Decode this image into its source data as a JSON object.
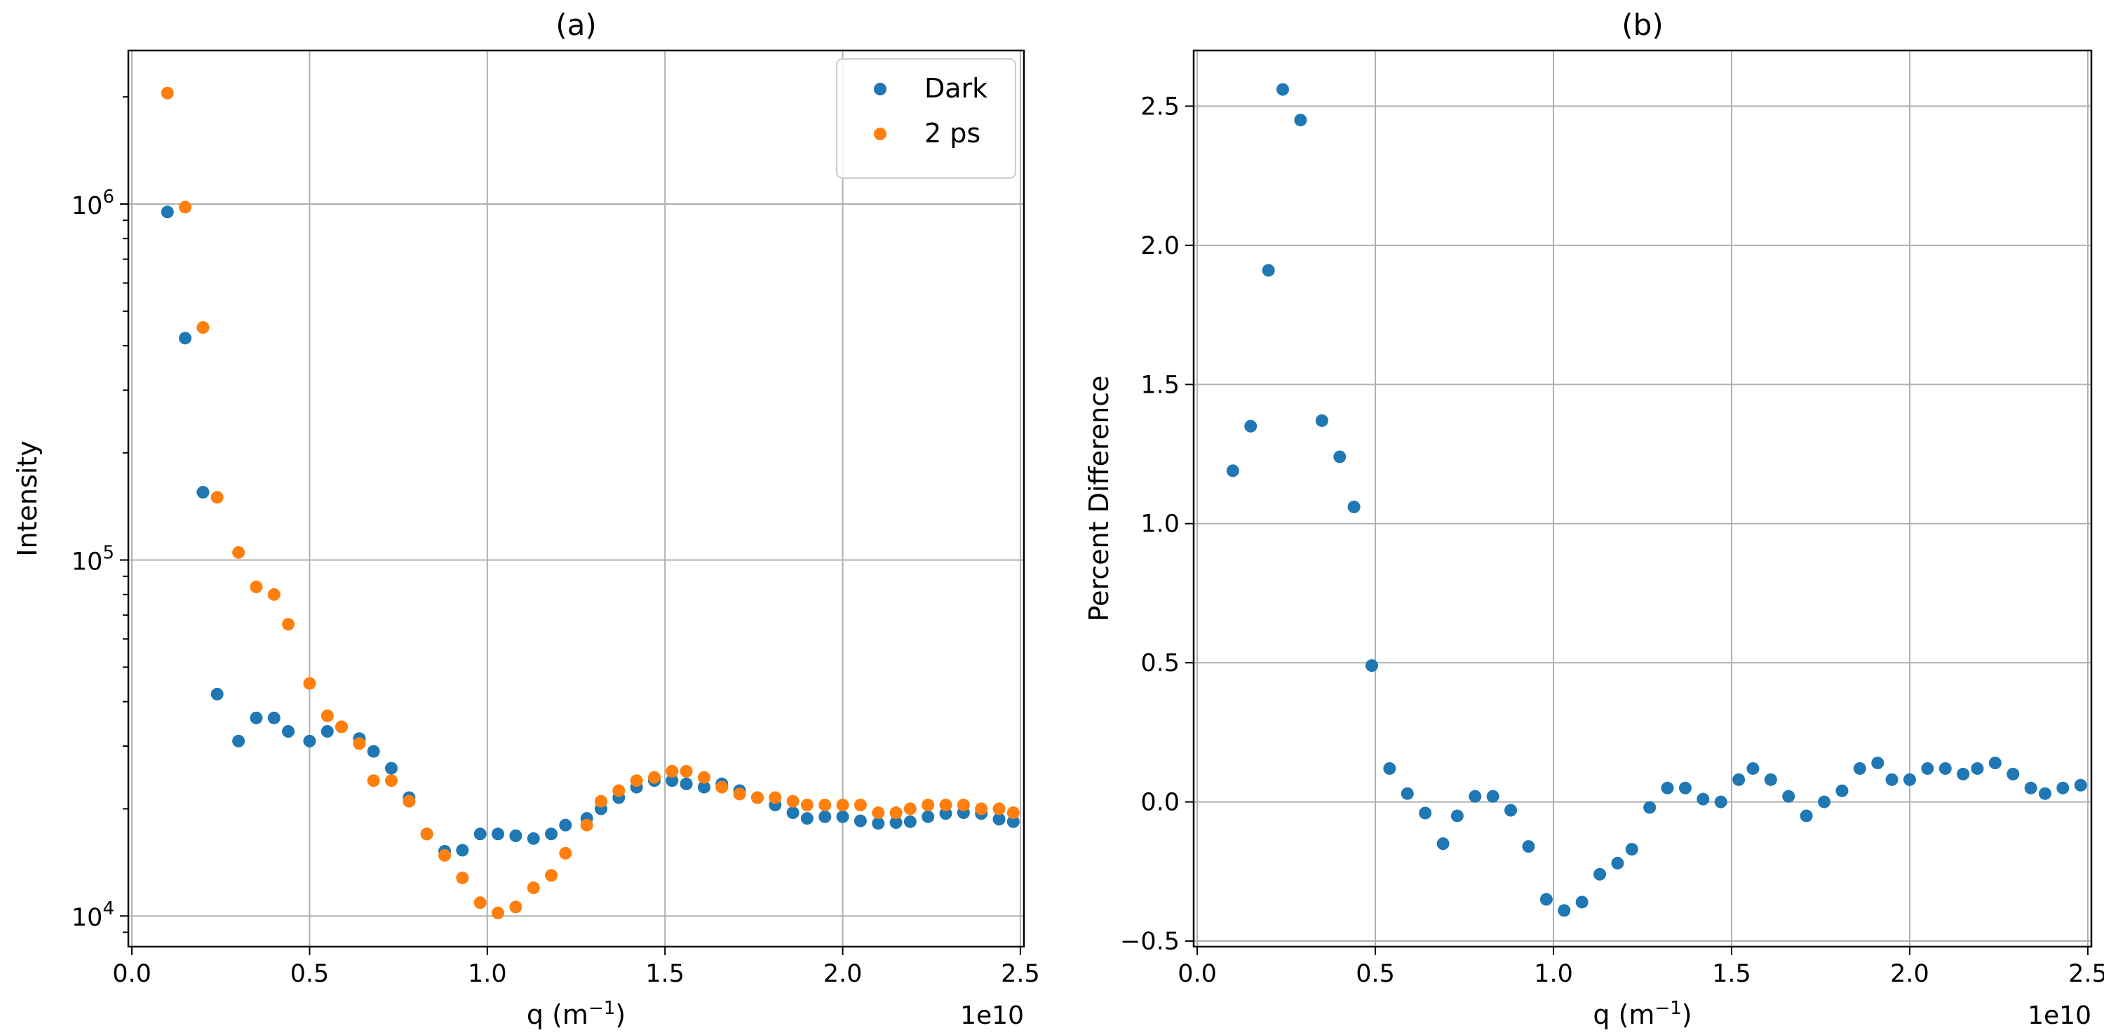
{
  "chart_data": [
    {
      "type": "scatter",
      "title": "(a)",
      "xlabel": "q (m",
      "xlabel_sup": "−1",
      "xlabel_close": ")",
      "ylabel": "Intensity",
      "yscale": "log",
      "xlim": [
        -0.01,
        2.51
      ],
      "ylim": [
        8200,
        2700000
      ],
      "x_ticks": [
        0.0,
        0.5,
        1.0,
        1.5,
        2.0,
        2.5
      ],
      "x_tick_labels": [
        "0.0",
        "0.5",
        "1.0",
        "1.5",
        "2.0",
        "2.5"
      ],
      "x_offset_label": "1e10",
      "y_ticks": [
        10000,
        100000,
        1000000
      ],
      "y_tick_bases": [
        "10",
        "10",
        "10"
      ],
      "y_tick_exps": [
        "4",
        "5",
        "6"
      ],
      "grid": true,
      "legend_position": "upper right",
      "series": [
        {
          "name": "Dark",
          "color": "#1f77b4",
          "x": [
            0.1,
            0.15,
            0.2,
            0.24,
            0.3,
            0.35,
            0.4,
            0.44,
            0.5,
            0.55,
            0.59,
            0.64,
            0.68,
            0.73,
            0.78,
            0.83,
            0.88,
            0.93,
            0.98,
            1.03,
            1.08,
            1.13,
            1.18,
            1.22,
            1.28,
            1.32,
            1.37,
            1.42,
            1.47,
            1.52,
            1.56,
            1.61,
            1.66,
            1.71,
            1.76,
            1.81,
            1.86,
            1.9,
            1.95,
            2.0,
            2.05,
            2.1,
            2.15,
            2.19,
            2.24,
            2.29,
            2.34,
            2.39,
            2.44,
            2.48
          ],
          "y": [
            950000,
            420000,
            155000,
            42000,
            31000,
            36000,
            36000,
            33000,
            31000,
            33000,
            34000,
            31500,
            29000,
            26000,
            21500,
            17000,
            15200,
            15300,
            17000,
            17000,
            16800,
            16500,
            17000,
            18000,
            18800,
            20000,
            21500,
            23000,
            24000,
            24000,
            23500,
            23000,
            23500,
            22500,
            21500,
            20500,
            19500,
            18800,
            19000,
            19000,
            18500,
            18200,
            18300,
            18400,
            19000,
            19400,
            19500,
            19400,
            18700,
            18400
          ]
        },
        {
          "name": "2 ps",
          "color": "#ff7f0e",
          "x": [
            0.1,
            0.15,
            0.2,
            0.24,
            0.3,
            0.35,
            0.4,
            0.44,
            0.5,
            0.55,
            0.59,
            0.64,
            0.68,
            0.73,
            0.78,
            0.83,
            0.88,
            0.93,
            0.98,
            1.03,
            1.08,
            1.13,
            1.18,
            1.22,
            1.28,
            1.32,
            1.37,
            1.42,
            1.47,
            1.52,
            1.56,
            1.61,
            1.66,
            1.71,
            1.76,
            1.81,
            1.86,
            1.9,
            1.95,
            2.0,
            2.05,
            2.1,
            2.15,
            2.19,
            2.24,
            2.29,
            2.34,
            2.39,
            2.44,
            2.48
          ],
          "y": [
            2050000,
            980000,
            450000,
            150000,
            105000,
            84000,
            80000,
            66000,
            45000,
            36500,
            34000,
            30500,
            24000,
            24000,
            21000,
            17000,
            14800,
            12800,
            10900,
            10200,
            10600,
            12000,
            13000,
            15000,
            18000,
            21000,
            22500,
            24000,
            24500,
            25500,
            25500,
            24500,
            23000,
            22000,
            21500,
            21500,
            21000,
            20500,
            20500,
            20500,
            20500,
            19500,
            19500,
            20000,
            20500,
            20500,
            20500,
            20000,
            20000,
            19500
          ]
        }
      ]
    },
    {
      "type": "scatter",
      "title": "(b)",
      "xlabel": "q (m",
      "xlabel_sup": "−1",
      "xlabel_close": ")",
      "ylabel": "Percent Difference",
      "yscale": "linear",
      "xlim": [
        -0.01,
        2.51
      ],
      "ylim": [
        -0.52,
        2.7
      ],
      "x_ticks": [
        0.0,
        0.5,
        1.0,
        1.5,
        2.0,
        2.5
      ],
      "x_tick_labels": [
        "0.0",
        "0.5",
        "1.0",
        "1.5",
        "2.0",
        "2.5"
      ],
      "x_offset_label": "1e10",
      "y_ticks": [
        -0.5,
        0.0,
        0.5,
        1.0,
        1.5,
        2.0,
        2.5
      ],
      "y_tick_labels": [
        "−0.5",
        "0.0",
        "0.5",
        "1.0",
        "1.5",
        "2.0",
        "2.5"
      ],
      "grid": true,
      "series": [
        {
          "name": "Percent Difference",
          "color": "#1f77b4",
          "x": [
            0.1,
            0.15,
            0.2,
            0.24,
            0.29,
            0.35,
            0.4,
            0.44,
            0.49,
            0.54,
            0.59,
            0.64,
            0.69,
            0.73,
            0.78,
            0.83,
            0.88,
            0.93,
            0.98,
            1.03,
            1.08,
            1.13,
            1.18,
            1.22,
            1.27,
            1.32,
            1.37,
            1.42,
            1.47,
            1.52,
            1.56,
            1.61,
            1.66,
            1.71,
            1.76,
            1.81,
            1.86,
            1.91,
            1.95,
            2.0,
            2.05,
            2.1,
            2.15,
            2.19,
            2.24,
            2.29,
            2.34,
            2.38,
            2.43,
            2.48
          ],
          "y": [
            1.19,
            1.35,
            1.91,
            2.56,
            2.45,
            1.37,
            1.24,
            1.06,
            0.49,
            0.12,
            0.03,
            -0.04,
            -0.15,
            -0.05,
            0.02,
            0.02,
            -0.03,
            -0.16,
            -0.35,
            -0.39,
            -0.36,
            -0.26,
            -0.22,
            -0.17,
            -0.02,
            0.05,
            0.05,
            0.01,
            0.0,
            0.08,
            0.12,
            0.08,
            0.02,
            -0.05,
            0.0,
            0.04,
            0.12,
            0.14,
            0.08,
            0.08,
            0.12,
            0.12,
            0.1,
            0.12,
            0.14,
            0.1,
            0.05,
            0.03,
            0.05,
            0.06
          ]
        }
      ]
    }
  ]
}
